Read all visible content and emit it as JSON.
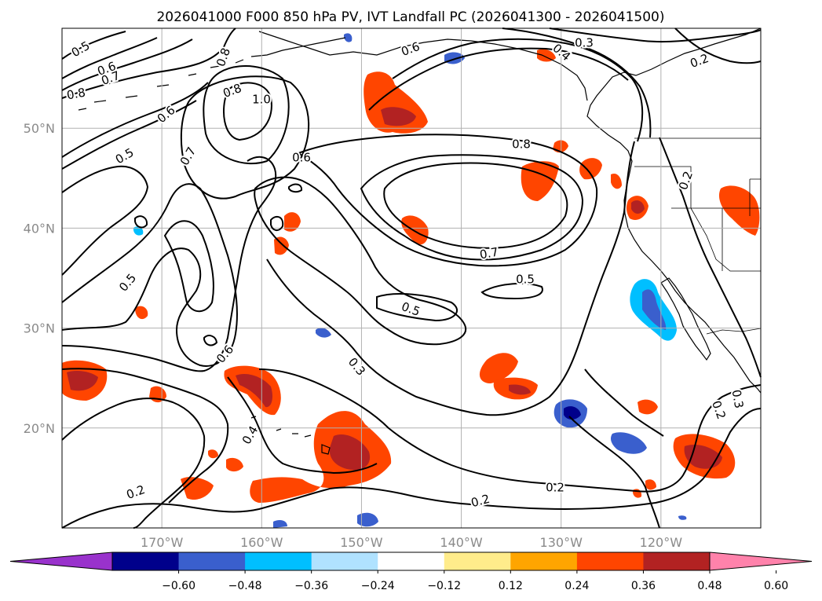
{
  "title": "2026041000 F000 850 hPa PV, IVT Landfall PC (2026041300 - 2026041500)",
  "map": {
    "lon_ticks": [
      {
        "lon": -170,
        "label": "170°W"
      },
      {
        "lon": -160,
        "label": "160°W"
      },
      {
        "lon": -150,
        "label": "150°W"
      },
      {
        "lon": -140,
        "label": "140°W"
      },
      {
        "lon": -130,
        "label": "130°W"
      },
      {
        "lon": -120,
        "label": "120°W"
      }
    ],
    "lat_ticks": [
      {
        "lat": 50,
        "label": "50°N"
      },
      {
        "lat": 40,
        "label": "40°N"
      },
      {
        "lat": 30,
        "label": "30°N"
      },
      {
        "lat": 20,
        "label": "20°N"
      }
    ],
    "contour_labels": [
      "0.5",
      "0.6",
      "0.7",
      "0.8",
      "0.8",
      "0.8",
      "1.0",
      "0.6",
      "0.5",
      "0.7",
      "0.6",
      "0.6",
      "0.3",
      "0.4",
      "0.2",
      "0.8",
      "0.2",
      "0.7",
      "0.5",
      "0.5",
      "0.5",
      "0.6",
      "0.3",
      "0.4",
      "0.2",
      "0.2",
      "0.2",
      "0.3",
      "0.2"
    ],
    "contour_color": "#000000",
    "shading": "IVT landfall principal component"
  },
  "colorbar": {
    "ticks": [
      "−0.60",
      "−0.48",
      "−0.36",
      "−0.24",
      "−0.12",
      "0.12",
      "0.24",
      "0.36",
      "0.48",
      "0.60"
    ],
    "colors": [
      "#9932cc",
      "#00008b",
      "#3a5fcd",
      "#00bfff",
      "#b0e2ff",
      "#ffffff",
      "#ffec8b",
      "#ffa500",
      "#ff4500",
      "#b22222",
      "#ff82ab"
    ]
  }
}
